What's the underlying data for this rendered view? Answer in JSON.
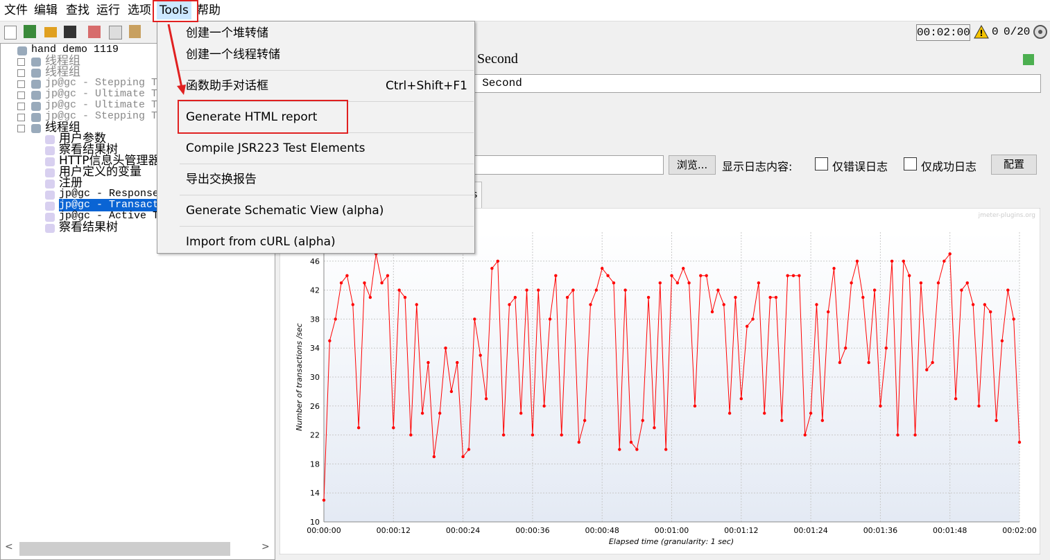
{
  "menu_bar": [
    "文件",
    "编辑",
    "查找",
    "运行",
    "选项",
    "Tools",
    "帮助"
  ],
  "toolbar": {
    "timer": "00:02:00",
    "warnings": "0",
    "threads": "0/20"
  },
  "tree": [
    "hand demo 1119",
    "线程组",
    "线程组",
    "jp@gc - Stepping T",
    "jp@gc - Ultimate T",
    "jp@gc - Ultimate T",
    "jp@gc - Stepping T",
    "线程组",
    "用户参数",
    "察看结果树",
    "HTTP信息头管理器",
    "用户定义的变量",
    "注册",
    "jp@gc - Response",
    "jp@gc - Transact",
    "jp@gc - Active T",
    "察看结果树"
  ],
  "tools_menu": {
    "items": [
      "创建一个堆转储",
      "创建一个线程转储",
      "函数助手对话框",
      "Generate HTML report",
      "Compile JSR223 Test Elements",
      "导出交换报告",
      "Generate Schematic View (alpha)",
      "Import from cURL (alpha)"
    ],
    "shortcut": "Ctrl+Shift+F1"
  },
  "panel": {
    "title": "Second",
    "name_field": "r Second",
    "browse": "浏览...",
    "log_label": "显示日志内容:",
    "errors_only": "仅错误日志",
    "success_only": "仅成功日志",
    "configure": "配置",
    "tab": "s"
  },
  "chart": {
    "type": "line",
    "watermark": "jmeter-plugins.org",
    "x_label": "Elapsed time (granularity: 1 sec)",
    "y_label": "Number of transactions /sec",
    "x": [
      0,
      1,
      2,
      3,
      4,
      5,
      6,
      7,
      8,
      9,
      10,
      11,
      12,
      13,
      14,
      15,
      16,
      17,
      18,
      19,
      20,
      21,
      22,
      23,
      24,
      25,
      26,
      27,
      28,
      29,
      30,
      31,
      32,
      33,
      34,
      35,
      36,
      37,
      38,
      39,
      40,
      41,
      42,
      43,
      44,
      45,
      46,
      47,
      48,
      49,
      50,
      51,
      52,
      53,
      54,
      55,
      56,
      57,
      58,
      59,
      60,
      61,
      62,
      63,
      64,
      65,
      66,
      67,
      68,
      69,
      70,
      71,
      72,
      73,
      74,
      75,
      76,
      77,
      78,
      79,
      80,
      81,
      82,
      83,
      84,
      85,
      86,
      87,
      88,
      89,
      90,
      91,
      92,
      93,
      94,
      95,
      96,
      97,
      98,
      99,
      100,
      101,
      102,
      103,
      104,
      105,
      106,
      107,
      108,
      109,
      110,
      111,
      112,
      113,
      114,
      115,
      116,
      117,
      118,
      119,
      120
    ],
    "series": [
      {
        "color": "#ff0000",
        "values": [
          13,
          35,
          38,
          43,
          44,
          40,
          23,
          43,
          41,
          47,
          43,
          44,
          23,
          42,
          41,
          22,
          40,
          25,
          32,
          19,
          25,
          34,
          28,
          32,
          19,
          20,
          38,
          33,
          27,
          45,
          46,
          22,
          40,
          41,
          25,
          42,
          22,
          42,
          26,
          38,
          44,
          22,
          41,
          42,
          21,
          24,
          40,
          42,
          45,
          44,
          43,
          20,
          42,
          21,
          20,
          24,
          41,
          23,
          43,
          20,
          44,
          43,
          45,
          43,
          26,
          44,
          44,
          39,
          42,
          40,
          25,
          41,
          27,
          37,
          38,
          43,
          25,
          41,
          41,
          24,
          44,
          44,
          44,
          22,
          25,
          40,
          24,
          39,
          45,
          32,
          34,
          43,
          46,
          41,
          32,
          42,
          26,
          34,
          46,
          22,
          46,
          44,
          22,
          43,
          31,
          32,
          43,
          46,
          47,
          27,
          42,
          43,
          40,
          26,
          40,
          39,
          24,
          35,
          42,
          38,
          21
        ]
      }
    ],
    "xlim": [
      0,
      120
    ],
    "ylim": [
      10,
      50
    ],
    "xticks": [
      {
        "value": 0,
        "label": "00:00:00"
      },
      {
        "value": 12,
        "label": "00:00:12"
      },
      {
        "value": 24,
        "label": "00:00:24"
      },
      {
        "value": 36,
        "label": "00:00:36"
      },
      {
        "value": 48,
        "label": "00:00:48"
      },
      {
        "value": 60,
        "label": "00:01:00"
      },
      {
        "value": 72,
        "label": "00:01:12"
      },
      {
        "value": 84,
        "label": "00:01:24"
      },
      {
        "value": 96,
        "label": "00:01:36"
      },
      {
        "value": 108,
        "label": "00:01:48"
      },
      {
        "value": 120,
        "label": "00:02:00"
      }
    ],
    "yticks": [
      10,
      14,
      18,
      22,
      26,
      30,
      34,
      38,
      42,
      46
    ],
    "grid": true
  }
}
